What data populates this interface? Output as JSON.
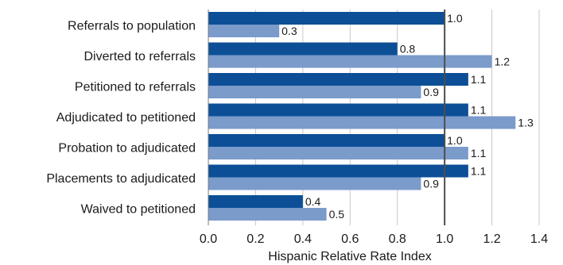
{
  "chart_data": {
    "type": "bar",
    "orientation": "horizontal",
    "categories": [
      "Referrals to population",
      "Diverted to referrals",
      "Petitioned to referrals",
      "Adjudicated to petitioned",
      "Probation to adjudicated",
      "Placements to adjudicated",
      "Waived to petitioned"
    ],
    "series": [
      {
        "values": [
          1.0,
          0.8,
          1.1,
          1.1,
          1.0,
          1.1,
          0.4
        ],
        "color": "#0c4f97"
      },
      {
        "values": [
          0.3,
          1.2,
          0.9,
          1.3,
          1.1,
          0.9,
          0.5
        ],
        "color": "#7b9bcb"
      }
    ],
    "data_labels": [
      [
        "1.0",
        "0.8",
        "1.1",
        "1.1",
        "1.0",
        "1.1",
        "0.4"
      ],
      [
        "0.3",
        "1.2",
        "0.9",
        "1.3",
        "1.1",
        "0.9",
        "0.5"
      ]
    ],
    "xlabel": "Hispanic Relative Rate Index",
    "xlim": [
      0,
      1.4
    ],
    "xticks": [
      "0.0",
      "0.2",
      "0.4",
      "0.6",
      "0.8",
      "1.0",
      "1.2",
      "1.4"
    ],
    "reference_line": 1.0,
    "grid": true,
    "legend": "none"
  }
}
